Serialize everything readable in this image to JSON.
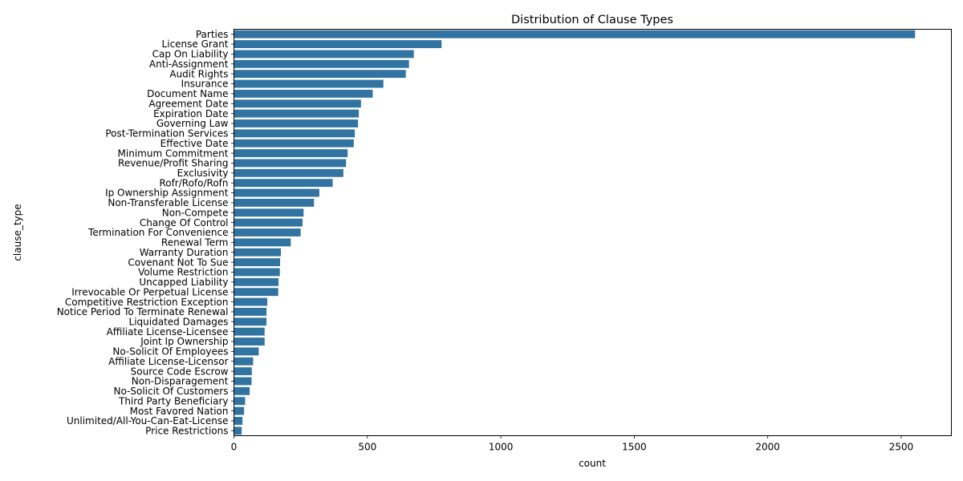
{
  "chart_data": {
    "type": "bar",
    "orientation": "horizontal",
    "title": "Distribution of Clause Types",
    "xlabel": "count",
    "ylabel": "clause_type",
    "xlim": [
      0,
      2688
    ],
    "xticks": [
      0,
      500,
      1000,
      1500,
      2000,
      2500
    ],
    "grid": false,
    "bar_color": "#3274a1",
    "categories": [
      "Parties",
      "License Grant",
      "Cap On Liability",
      "Anti-Assignment",
      "Audit Rights",
      "Insurance",
      "Document Name",
      "Agreement Date",
      "Expiration Date",
      "Governing Law",
      "Post-Termination Services",
      "Effective Date",
      "Minimum Commitment",
      "Revenue/Profit Sharing",
      "Exclusivity",
      "Rofr/Rofo/Rofn",
      "Ip Ownership Assignment",
      "Non-Transferable License",
      "Non-Compete",
      "Change Of Control",
      "Termination For Convenience",
      "Renewal Term",
      "Warranty Duration",
      "Covenant Not To Sue",
      "Volume Restriction",
      "Uncapped Liability",
      "Irrevocable Or Perpetual License",
      "Competitive Restriction Exception",
      "Notice Period To Terminate Renewal",
      "Liquidated Damages",
      "Affiliate License-Licensee",
      "Joint Ip Ownership",
      "No-Solicit Of Employees",
      "Affiliate License-Licensor",
      "Source Code Escrow",
      "Non-Disparagement",
      "No-Solicit Of Customers",
      "Third Party Beneficiary",
      "Most Favored Nation",
      "Unlimited/All-You-Can-Eat-License",
      "Price Restrictions"
    ],
    "values": [
      2552,
      778,
      674,
      656,
      644,
      560,
      520,
      476,
      468,
      465,
      453,
      449,
      426,
      420,
      410,
      370,
      320,
      300,
      261,
      257,
      250,
      213,
      176,
      173,
      172,
      167,
      166,
      125,
      122,
      122,
      115,
      115,
      93,
      72,
      67,
      66,
      59,
      42,
      38,
      32,
      29
    ]
  }
}
